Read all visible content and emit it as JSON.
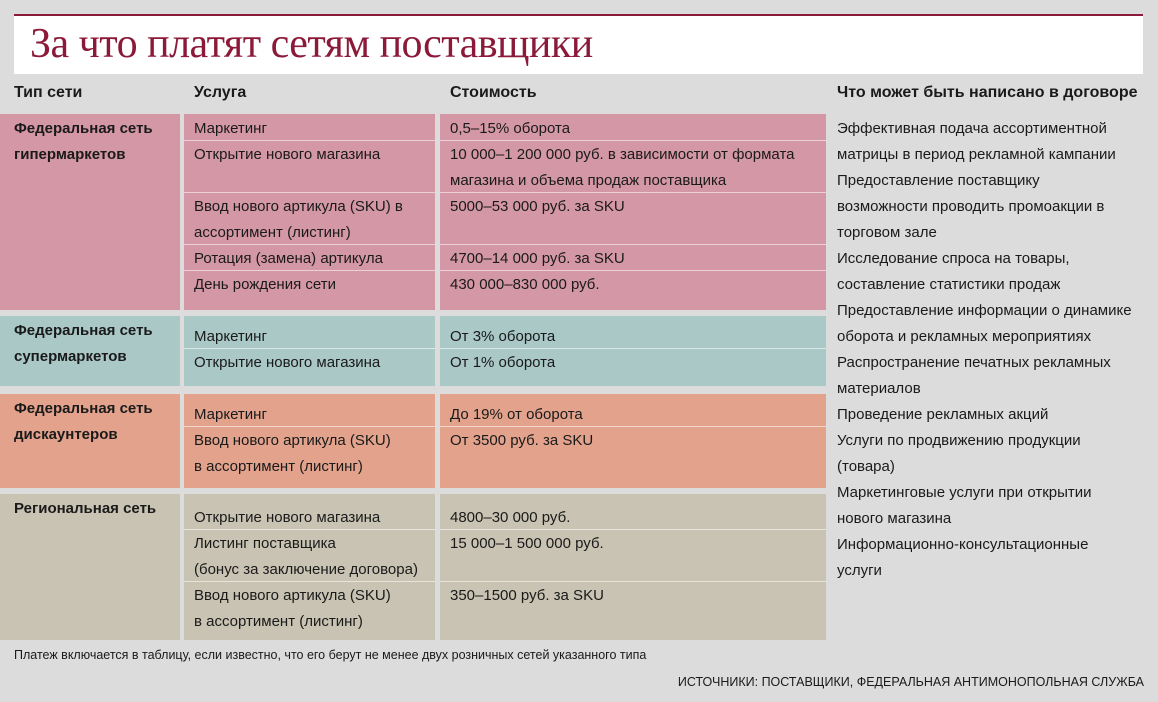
{
  "title": "За что платят сетям поставщики",
  "headers": {
    "type": "Тип сети",
    "service": "Услуга",
    "cost": "Стоимость",
    "contract": "Что может быть написано в договоре"
  },
  "groups": [
    {
      "name_line1": "Федеральная сеть",
      "name_line2": "гипермаркетов",
      "color": "#d497a6",
      "rows": [
        {
          "service": [
            "Маркетинг"
          ],
          "cost": [
            "0,5–15% оборота"
          ]
        },
        {
          "service": [
            "Открытие нового магазина"
          ],
          "cost": [
            "10 000–1 200 000 руб. в зависимости от формата",
            "магазина и объема продаж поставщика"
          ]
        },
        {
          "service": [
            "Ввод нового артикула (SKU) в",
            "ассортимент (листинг)"
          ],
          "cost": [
            "5000–53 000 руб. за SKU"
          ]
        },
        {
          "service": [
            "Ротация (замена) артикула"
          ],
          "cost": [
            "4700–14 000 руб. за SKU"
          ]
        },
        {
          "service": [
            "День рождения сети"
          ],
          "cost": [
            "430 000–830 000 руб."
          ]
        }
      ]
    },
    {
      "name_line1": "Федеральная сеть",
      "name_line2": "супермаркетов",
      "color": "#a9c8c6",
      "rows": [
        {
          "service": [
            "Маркетинг"
          ],
          "cost": [
            "От 3% оборота"
          ]
        },
        {
          "service": [
            "Открытие нового магазина"
          ],
          "cost": [
            "От 1% оборота"
          ]
        }
      ]
    },
    {
      "name_line1": "Федеральная сеть",
      "name_line2": "дискаунтеров",
      "color": "#e2a28c",
      "rows": [
        {
          "service": [
            "Маркетинг"
          ],
          "cost": [
            "До 19% от оборота"
          ]
        },
        {
          "service": [
            "Ввод нового артикула (SKU)",
            "в ассортимент (листинг)"
          ],
          "cost": [
            "От 3500 руб. за SKU"
          ]
        }
      ]
    },
    {
      "name_line1": "Региональная сеть",
      "name_line2": "",
      "color": "#c8c3b2",
      "rows": [
        {
          "service": [
            "Открытие нового магазина"
          ],
          "cost": [
            "4800–30 000 руб."
          ]
        },
        {
          "service": [
            "Листинг поставщика",
            "(бонус за заключение договора)"
          ],
          "cost": [
            "15 000–1 500 000 руб."
          ]
        },
        {
          "service": [
            "Ввод нового артикула (SKU)",
            "в ассортимент (листинг)"
          ],
          "cost": [
            "350–1500 руб. за SKU"
          ]
        }
      ]
    }
  ],
  "contract_items": [
    [
      "Эффективная подача ассортиментной",
      "матрицы в период рекламной кампании"
    ],
    [
      "Предоставление поставщику",
      "возможности проводить промоакции в",
      "торговом зале"
    ],
    [
      "Исследование спроса на товары,",
      "составление статистики продаж"
    ],
    [
      "Предоставление информации о динамике",
      "оборота и рекламных мероприятиях"
    ],
    [
      "Распространение печатных рекламных",
      "материалов"
    ],
    [
      "Проведение рекламных акций"
    ],
    [
      "Услуги по продвижению продукции",
      "(товара)"
    ],
    [
      "Маркетинговые услуги при открытии",
      "нового магазина"
    ],
    [
      "Информационно-консультационные",
      "услуги"
    ]
  ],
  "note": "Платеж включается в таблицу, если известно, что его берут не менее двух розничных сетей указанного типа",
  "source": "ИСТОЧНИКИ: ПОСТАВЩИКИ, ФЕДЕРАЛЬНАЯ АНТИМОНОПОЛЬНАЯ СЛУЖБА"
}
